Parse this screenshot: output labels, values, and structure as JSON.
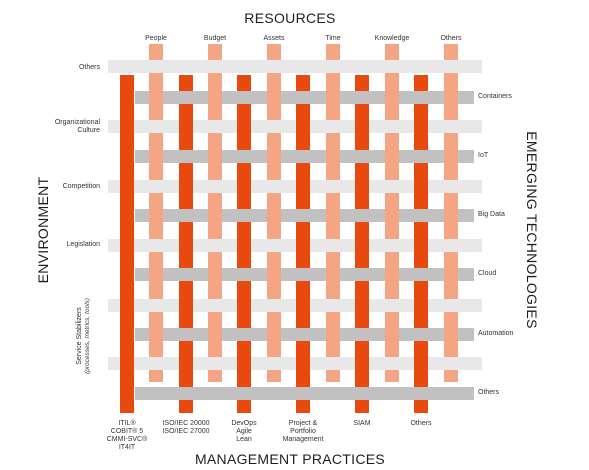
{
  "titles": {
    "top": "RESOURCES",
    "bottom": "MANAGEMENT PRACTICES",
    "left": "ENVIRONMENT",
    "right": "EMERGING TECHNOLOGIES"
  },
  "resources": [
    "People",
    "Budget",
    "Assets",
    "Time",
    "Knowledge",
    "Others"
  ],
  "environment": [
    [
      "Others"
    ],
    [
      "Organizational",
      "Culture"
    ],
    [
      "Competition"
    ],
    [
      "Legislation"
    ]
  ],
  "stabilizers": {
    "line1": "Service Stabilizers",
    "line2": "(processes, metrics, tools)"
  },
  "technologies": [
    "Containers",
    "IoT",
    "Big Data",
    "Cloud",
    "Automation",
    "Others"
  ],
  "practices": [
    [
      "ITIL®",
      "COBIT® 5",
      "CMMI-SVC®",
      "IT4IT"
    ],
    [
      "ISO/IEC 20000",
      "ISO/IEC 27000"
    ],
    [
      "DevOps",
      "Agile",
      "Lean"
    ],
    [
      "Project &",
      "Portfolio",
      "Management"
    ],
    [
      "SIAM"
    ],
    [
      "Others"
    ]
  ],
  "colors": {
    "resource_strip": "#f4a584",
    "practice_strip": "#e8490f",
    "environment_strip": "#e8e8e8",
    "technology_strip": "#c1c1c1"
  }
}
